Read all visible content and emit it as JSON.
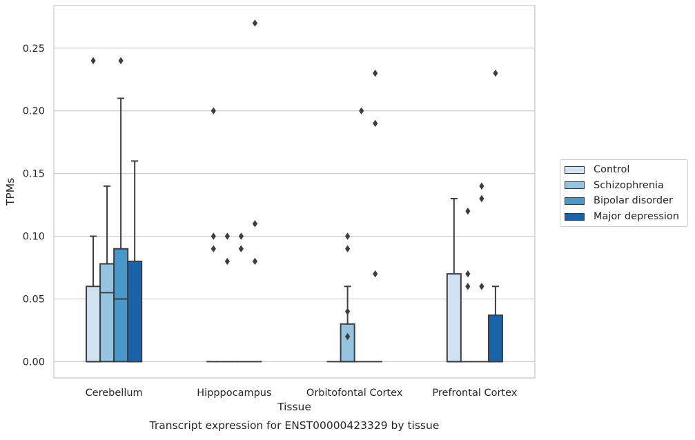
{
  "chart_data": {
    "type": "box",
    "subtitle": "Transcript expression for ENST00000423329 by tissue",
    "xlabel": "Tissue",
    "ylabel": "TPMs",
    "ylim": [
      -0.013,
      0.284
    ],
    "yticks": [
      0.0,
      0.05,
      0.1,
      0.15,
      0.2,
      0.25
    ],
    "ytick_labels": [
      "0.00",
      "0.05",
      "0.10",
      "0.15",
      "0.20",
      "0.25"
    ],
    "grid": true,
    "legend_position": "right",
    "categories": [
      "Cerebellum",
      "Hipppocampus",
      "Orbitofontal Cortex",
      "Prefrontal Cortex"
    ],
    "series": [
      {
        "name": "Control",
        "color": "#d0e1f2",
        "boxes": [
          {
            "q1": 0.0,
            "median": 0.0,
            "q3": 0.06,
            "whisker_low": 0.0,
            "whisker_high": 0.1,
            "outliers": [
              0.24
            ]
          },
          {
            "q1": 0.0,
            "median": 0.0,
            "q3": 0.0,
            "whisker_low": 0.0,
            "whisker_high": 0.0,
            "outliers": [
              0.09,
              0.1,
              0.2
            ]
          },
          {
            "q1": 0.0,
            "median": 0.0,
            "q3": 0.0,
            "whisker_low": 0.0,
            "whisker_high": 0.0,
            "outliers": []
          },
          {
            "q1": 0.0,
            "median": 0.0,
            "q3": 0.07,
            "whisker_low": 0.0,
            "whisker_high": 0.13,
            "outliers": []
          }
        ]
      },
      {
        "name": "Schizophrenia",
        "color": "#94c4df",
        "boxes": [
          {
            "q1": 0.0,
            "median": 0.055,
            "q3": 0.078,
            "whisker_low": 0.0,
            "whisker_high": 0.14,
            "outliers": []
          },
          {
            "q1": 0.0,
            "median": 0.0,
            "q3": 0.0,
            "whisker_low": 0.0,
            "whisker_high": 0.0,
            "outliers": [
              0.08,
              0.1
            ]
          },
          {
            "q1": 0.0,
            "median": 0.0,
            "q3": 0.03,
            "whisker_low": 0.0,
            "whisker_high": 0.06,
            "outliers": [
              0.02,
              0.04,
              0.09,
              0.1
            ]
          },
          {
            "q1": 0.0,
            "median": 0.0,
            "q3": 0.0,
            "whisker_low": 0.0,
            "whisker_high": 0.0,
            "outliers": [
              0.06,
              0.07,
              0.12
            ]
          }
        ]
      },
      {
        "name": "Bipolar disorder",
        "color": "#4a98c9",
        "boxes": [
          {
            "q1": 0.0,
            "median": 0.05,
            "q3": 0.09,
            "whisker_low": 0.0,
            "whisker_high": 0.21,
            "outliers": [
              0.24
            ]
          },
          {
            "q1": 0.0,
            "median": 0.0,
            "q3": 0.0,
            "whisker_low": 0.0,
            "whisker_high": 0.0,
            "outliers": [
              0.09,
              0.1
            ]
          },
          {
            "q1": 0.0,
            "median": 0.0,
            "q3": 0.0,
            "whisker_low": 0.0,
            "whisker_high": 0.0,
            "outliers": [
              0.2
            ]
          },
          {
            "q1": 0.0,
            "median": 0.0,
            "q3": 0.0,
            "whisker_low": 0.0,
            "whisker_high": 0.0,
            "outliers": [
              0.06,
              0.13,
              0.14
            ]
          }
        ]
      },
      {
        "name": "Major depression",
        "color": "#1764ab",
        "boxes": [
          {
            "q1": 0.0,
            "median": 0.0,
            "q3": 0.08,
            "whisker_low": 0.0,
            "whisker_high": 0.16,
            "outliers": []
          },
          {
            "q1": 0.0,
            "median": 0.0,
            "q3": 0.0,
            "whisker_low": 0.0,
            "whisker_high": 0.0,
            "outliers": [
              0.08,
              0.11,
              0.27
            ]
          },
          {
            "q1": 0.0,
            "median": 0.0,
            "q3": 0.0,
            "whisker_low": 0.0,
            "whisker_high": 0.0,
            "outliers": [
              0.07,
              0.19,
              0.23
            ]
          },
          {
            "q1": 0.0,
            "median": 0.0,
            "q3": 0.037,
            "whisker_low": 0.0,
            "whisker_high": 0.06,
            "outliers": [
              0.23
            ]
          }
        ]
      }
    ]
  }
}
